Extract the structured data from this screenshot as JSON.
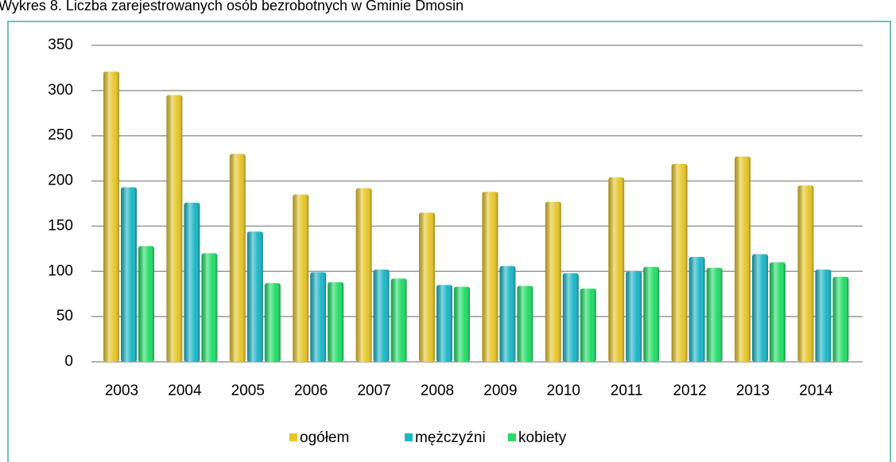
{
  "chart_data": {
    "type": "bar",
    "title": "Wykres 8. Liczba zarejestrowanych osób bezrobotnych w Gminie Dmosin",
    "categories": [
      "2003",
      "2004",
      "2005",
      "2006",
      "2007",
      "2008",
      "2009",
      "2010",
      "2011",
      "2012",
      "2013",
      "2014"
    ],
    "series": [
      {
        "name": "ogółem",
        "color": "#e6c62a",
        "values": [
          321,
          295,
          230,
          185,
          192,
          165,
          188,
          177,
          204,
          219,
          227,
          195
        ]
      },
      {
        "name": "mężczyźni",
        "color": "#1cb6c6",
        "values": [
          193,
          176,
          144,
          99,
          102,
          85,
          106,
          98,
          100,
          116,
          119,
          102
        ]
      },
      {
        "name": "kobiety",
        "color": "#22dc66",
        "values": [
          128,
          120,
          87,
          88,
          92,
          83,
          84,
          81,
          105,
          104,
          110,
          94
        ]
      }
    ],
    "ylim": [
      0,
      350
    ],
    "yticks": [
      0,
      50,
      100,
      150,
      200,
      250,
      300,
      350
    ],
    "grid": true,
    "legend": "bottom"
  }
}
